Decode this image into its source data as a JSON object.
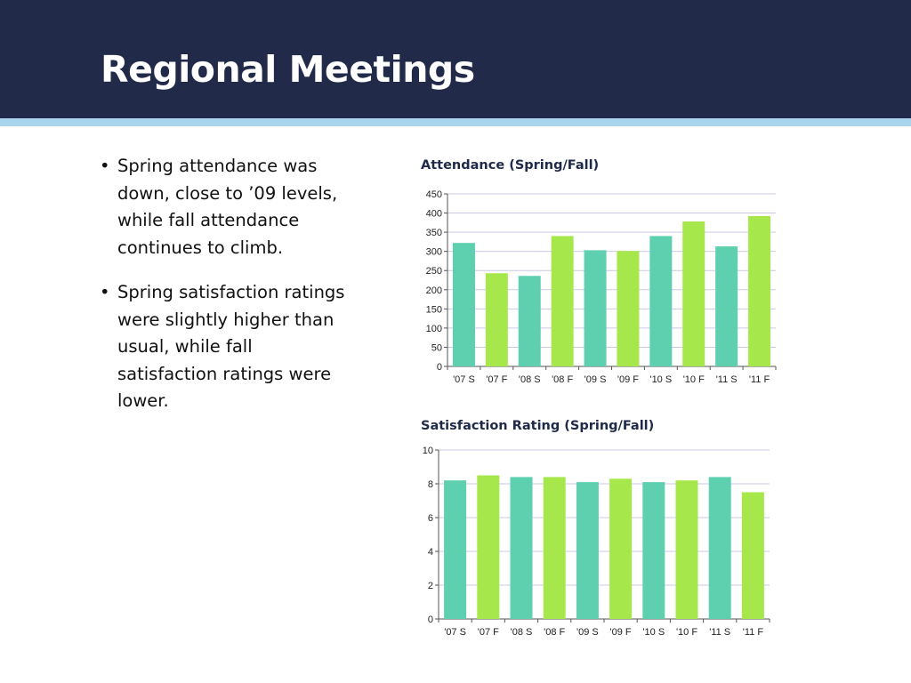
{
  "slide": {
    "title": "Regional Meetings",
    "bullets": [
      "Spring attendance was down, close to ’09 levels, while fall attendance continues to climb.",
      "Spring satisfaction ratings were slightly higher than usual, while fall satisfaction ratings were lower."
    ],
    "bullet_glyph": "•"
  },
  "colors": {
    "header": "#212a48",
    "stripe": "#a9d4ee",
    "spring": "#5ecfaf",
    "fall": "#a6e84c",
    "gridline": "#c9c9e6"
  },
  "chart_data": [
    {
      "type": "bar",
      "title": "Attendance (Spring/Fall)",
      "categories": [
        "'07 S",
        "'07 F",
        "'08 S",
        "'08 F",
        "'09 S",
        "'09 F",
        "'10 S",
        "'10 F",
        "'11 S",
        "'11 F"
      ],
      "values": [
        322,
        243,
        236,
        340,
        303,
        301,
        340,
        378,
        313,
        392
      ],
      "bar_colors": [
        "spring",
        "fall",
        "spring",
        "fall",
        "spring",
        "fall",
        "spring",
        "fall",
        "spring",
        "fall"
      ],
      "ylim": [
        0,
        450
      ],
      "yticks": [
        0,
        50,
        100,
        150,
        200,
        250,
        300,
        350,
        400,
        450
      ],
      "grid": true,
      "legend": "none"
    },
    {
      "type": "bar",
      "title": "Satisfaction Rating (Spring/Fall)",
      "categories": [
        "'07 S",
        "'07 F",
        "'08 S",
        "'08 F",
        "'09 S",
        "'09 F",
        "'10 S",
        "'10 F",
        "'11 S",
        "'11 F"
      ],
      "values": [
        8.2,
        8.5,
        8.4,
        8.4,
        8.1,
        8.3,
        8.1,
        8.2,
        8.4,
        7.5
      ],
      "bar_colors": [
        "spring",
        "fall",
        "spring",
        "fall",
        "spring",
        "fall",
        "spring",
        "fall",
        "spring",
        "fall"
      ],
      "ylim": [
        0,
        10
      ],
      "yticks": [
        0,
        2,
        4,
        6,
        8,
        10
      ],
      "grid": true,
      "legend": "none"
    }
  ]
}
